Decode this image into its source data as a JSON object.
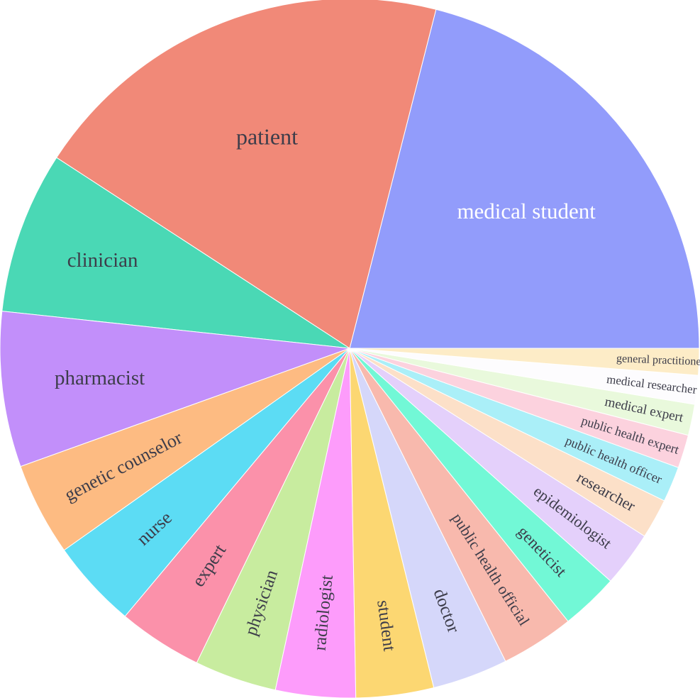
{
  "chart_data": {
    "type": "pie",
    "title": "",
    "slices": [
      {
        "label": "medical student",
        "value": 20.5,
        "color": "#929cfb"
      },
      {
        "label": "patient",
        "value": 19.3,
        "color": "#f18978"
      },
      {
        "label": "clinician",
        "value": 7.3,
        "color": "#4ad8b5"
      },
      {
        "label": "pharmacist",
        "value": 7.0,
        "color": "#c28ffa"
      },
      {
        "label": "genetic counselor",
        "value": 4.2,
        "color": "#fdbb82"
      },
      {
        "label": "nurse",
        "value": 4.0,
        "color": "#5cdcf4"
      },
      {
        "label": "expert",
        "value": 3.8,
        "color": "#fb91aa"
      },
      {
        "label": "physician",
        "value": 3.7,
        "color": "#c8ec9f"
      },
      {
        "label": "radiologist",
        "value": 3.6,
        "color": "#fd9cfb"
      },
      {
        "label": "student",
        "value": 3.5,
        "color": "#fcd772"
      },
      {
        "label": "doctor",
        "value": 3.4,
        "color": "#d5d7fa"
      },
      {
        "label": "public health official",
        "value": 3.3,
        "color": "#f8b9ad"
      },
      {
        "label": "geneticist",
        "value": 2.6,
        "color": "#72f8d6"
      },
      {
        "label": "epidemiologist",
        "value": 2.5,
        "color": "#e4d0fb"
      },
      {
        "label": "researcher",
        "value": 1.8,
        "color": "#fce0c8"
      },
      {
        "label": "public health officer",
        "value": 1.6,
        "color": "#aaeff8"
      },
      {
        "label": "public health expert",
        "value": 1.5,
        "color": "#fcd2de"
      },
      {
        "label": "medical expert",
        "value": 1.4,
        "color": "#e9f9dc"
      },
      {
        "label": "medical researcher",
        "value": 1.3,
        "color": "#fdfcfe"
      },
      {
        "label": "general practitioner",
        "value": 1.2,
        "color": "#fdecc7"
      }
    ],
    "start": "3 o'clock",
    "direction": "counterclockwise",
    "legend": "none"
  }
}
